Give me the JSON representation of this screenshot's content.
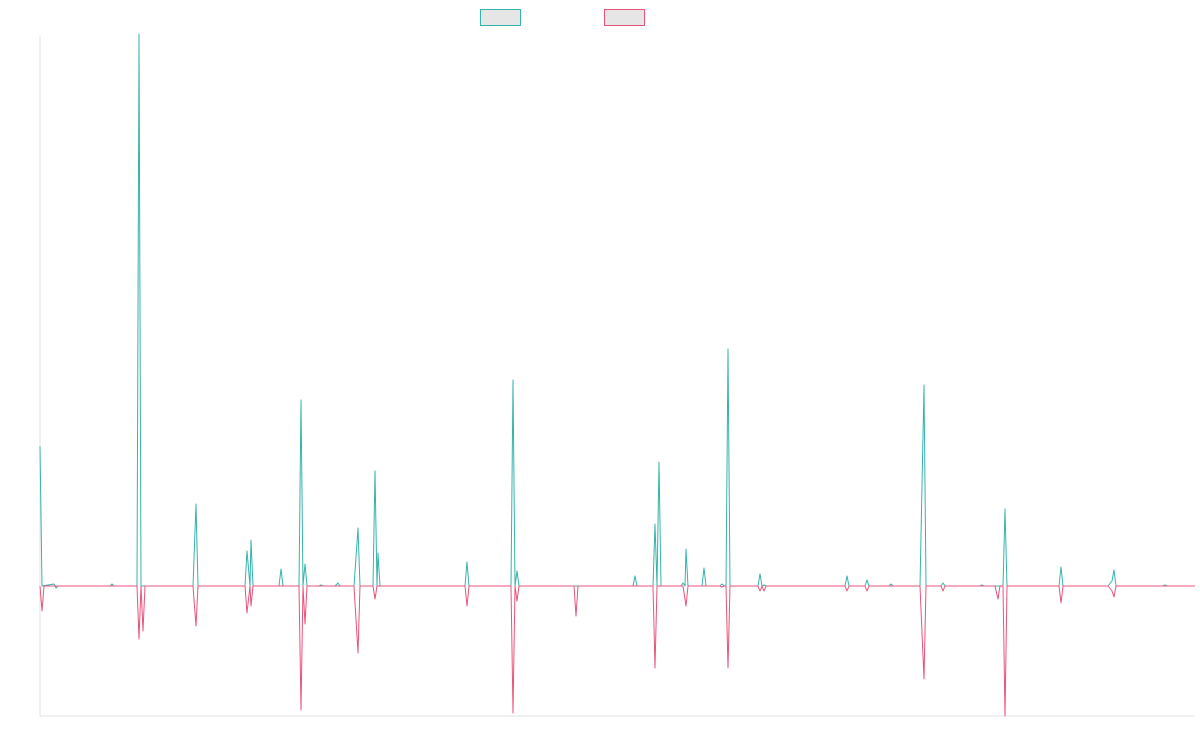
{
  "chart_data": {
    "type": "line",
    "grid": false,
    "legend_position": "top-center",
    "ylim": [
      -130,
      550
    ],
    "series": [
      {
        "color": "#36b3ac",
        "legend_fill": "#e6e6e6",
        "points": [
          [
            0,
            140
          ],
          [
            2,
            0
          ],
          [
            14,
            2
          ],
          [
            15,
            0
          ],
          [
            16,
            -2
          ],
          [
            18,
            0
          ],
          [
            70,
            0
          ],
          [
            72,
            2
          ],
          [
            74,
            0
          ],
          [
            97,
            0
          ],
          [
            99,
            552
          ],
          [
            101,
            0
          ],
          [
            153,
            0
          ],
          [
            156,
            82
          ],
          [
            158,
            0
          ],
          [
            205,
            0
          ],
          [
            207,
            35
          ],
          [
            210,
            0
          ],
          [
            211,
            46
          ],
          [
            213,
            0
          ],
          [
            239,
            0
          ],
          [
            241,
            17
          ],
          [
            243,
            0
          ],
          [
            259,
            0
          ],
          [
            261,
            186
          ],
          [
            263,
            0
          ],
          [
            265,
            22
          ],
          [
            267,
            0
          ],
          [
            279,
            0
          ],
          [
            281,
            1
          ],
          [
            283,
            0
          ],
          [
            295,
            0
          ],
          [
            298,
            3
          ],
          [
            300,
            0
          ],
          [
            314,
            0
          ],
          [
            318,
            58
          ],
          [
            320,
            0
          ],
          [
            333,
            0
          ],
          [
            335,
            115
          ],
          [
            337,
            0
          ],
          [
            338,
            33
          ],
          [
            340,
            0
          ],
          [
            425,
            0
          ],
          [
            427,
            24
          ],
          [
            429,
            0
          ],
          [
            471,
            0
          ],
          [
            473,
            206
          ],
          [
            475,
            0
          ],
          [
            477,
            15
          ],
          [
            479,
            0
          ],
          [
            593,
            0
          ],
          [
            595,
            10
          ],
          [
            597,
            0
          ],
          [
            613,
            0
          ],
          [
            615,
            62
          ],
          [
            617,
            0
          ],
          [
            619,
            124
          ],
          [
            621,
            0
          ],
          [
            641,
            0
          ],
          [
            643,
            3
          ],
          [
            645,
            0
          ],
          [
            646,
            37
          ],
          [
            648,
            0
          ],
          [
            662,
            0
          ],
          [
            664,
            18
          ],
          [
            666,
            0
          ],
          [
            680,
            0
          ],
          [
            682,
            2
          ],
          [
            684,
            0
          ],
          [
            686,
            0
          ],
          [
            688,
            237
          ],
          [
            690,
            0
          ],
          [
            718,
            0
          ],
          [
            720,
            12
          ],
          [
            722,
            0
          ],
          [
            724,
            1
          ],
          [
            726,
            0
          ],
          [
            805,
            0
          ],
          [
            807,
            10
          ],
          [
            809,
            0
          ],
          [
            825,
            0
          ],
          [
            827,
            6
          ],
          [
            829,
            0
          ],
          [
            849,
            0
          ],
          [
            851,
            2
          ],
          [
            853,
            0
          ],
          [
            880,
            0
          ],
          [
            884,
            201
          ],
          [
            886,
            0
          ],
          [
            901,
            0
          ],
          [
            903,
            3
          ],
          [
            905,
            0
          ],
          [
            940,
            0
          ],
          [
            942,
            1
          ],
          [
            944,
            0
          ],
          [
            963,
            0
          ],
          [
            965,
            77
          ],
          [
            967,
            0
          ],
          [
            1019,
            0
          ],
          [
            1021,
            19
          ],
          [
            1023,
            0
          ],
          [
            1025,
            0
          ],
          [
            1068,
            0
          ],
          [
            1072,
            5
          ],
          [
            1074,
            16
          ],
          [
            1076,
            0
          ],
          [
            1123,
            0
          ],
          [
            1125,
            1
          ],
          [
            1127,
            0
          ],
          [
            1155,
            0
          ]
        ]
      },
      {
        "color": "#e8537a",
        "legend_fill": "#e6e6e6",
        "points": [
          [
            0,
            0
          ],
          [
            2,
            -25
          ],
          [
            4,
            0
          ],
          [
            14,
            0
          ],
          [
            15,
            0
          ],
          [
            16,
            0
          ],
          [
            70,
            0
          ],
          [
            97,
            0
          ],
          [
            99,
            -53
          ],
          [
            101,
            0
          ],
          [
            103,
            -45
          ],
          [
            105,
            0
          ],
          [
            153,
            0
          ],
          [
            156,
            -40
          ],
          [
            158,
            0
          ],
          [
            205,
            0
          ],
          [
            207,
            -27
          ],
          [
            210,
            0
          ],
          [
            211,
            -20
          ],
          [
            213,
            0
          ],
          [
            259,
            0
          ],
          [
            261,
            -124
          ],
          [
            263,
            0
          ],
          [
            265,
            -38
          ],
          [
            267,
            0
          ],
          [
            314,
            0
          ],
          [
            318,
            -67
          ],
          [
            320,
            0
          ],
          [
            333,
            0
          ],
          [
            335,
            -13
          ],
          [
            337,
            0
          ],
          [
            425,
            0
          ],
          [
            427,
            -20
          ],
          [
            429,
            0
          ],
          [
            471,
            0
          ],
          [
            473,
            -127
          ],
          [
            475,
            0
          ],
          [
            477,
            -15
          ],
          [
            479,
            0
          ],
          [
            534,
            0
          ],
          [
            536,
            -30
          ],
          [
            538,
            0
          ],
          [
            613,
            0
          ],
          [
            615,
            -82
          ],
          [
            617,
            0
          ],
          [
            643,
            0
          ],
          [
            646,
            -20
          ],
          [
            648,
            0
          ],
          [
            680,
            0
          ],
          [
            682,
            -1
          ],
          [
            684,
            0
          ],
          [
            686,
            0
          ],
          [
            688,
            -82
          ],
          [
            690,
            0
          ],
          [
            718,
            0
          ],
          [
            720,
            -5
          ],
          [
            722,
            0
          ],
          [
            724,
            -5
          ],
          [
            726,
            0
          ],
          [
            805,
            0
          ],
          [
            807,
            -5
          ],
          [
            809,
            0
          ],
          [
            825,
            0
          ],
          [
            827,
            -5
          ],
          [
            829,
            0
          ],
          [
            880,
            0
          ],
          [
            884,
            -93
          ],
          [
            886,
            0
          ],
          [
            901,
            0
          ],
          [
            903,
            -5
          ],
          [
            905,
            0
          ],
          [
            955,
            0
          ],
          [
            958,
            -13
          ],
          [
            960,
            0
          ],
          [
            963,
            0
          ],
          [
            965,
            -130
          ],
          [
            967,
            0
          ],
          [
            1019,
            0
          ],
          [
            1021,
            -17
          ],
          [
            1023,
            0
          ],
          [
            1025,
            0
          ],
          [
            1068,
            0
          ],
          [
            1072,
            -5
          ],
          [
            1074,
            -11
          ],
          [
            1076,
            0
          ],
          [
            1155,
            0
          ]
        ]
      }
    ],
    "x_range": [
      0,
      1155
    ]
  }
}
